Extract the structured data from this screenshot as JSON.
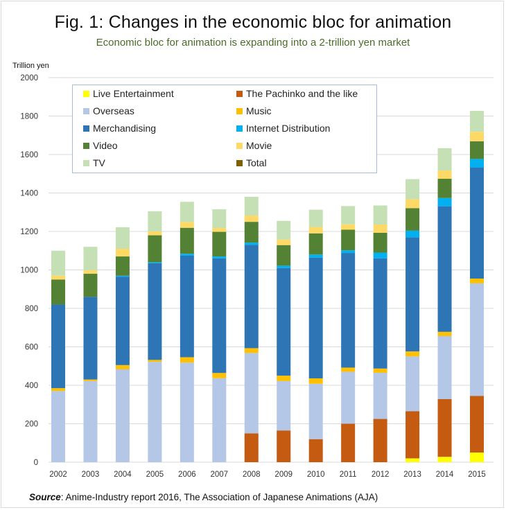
{
  "header": {
    "title": "Fig. 1: Changes in the economic bloc for animation",
    "subtitle": "Economic bloc for animation is expanding into a 2-trillion yen market",
    "unit_label": "Trillion yen"
  },
  "footer": {
    "source_label": "Source",
    "source_text": ": Anime-Industry report 2016, The Association of Japanese Animations (AJA)"
  },
  "legend": [
    {
      "name": "Live Entertainment",
      "color": "#ffff00"
    },
    {
      "name": "The Pachinko and the like",
      "color": "#c55a11"
    },
    {
      "name": "Overseas",
      "color": "#b4c7e7"
    },
    {
      "name": "Music",
      "color": "#ffc000"
    },
    {
      "name": "Merchandising",
      "color": "#2e75b6"
    },
    {
      "name": "Internet Distribution",
      "color": "#00b0f0"
    },
    {
      "name": "Video",
      "color": "#548235"
    },
    {
      "name": "Movie",
      "color": "#ffd966"
    },
    {
      "name": "TV",
      "color": "#c5e0b4"
    },
    {
      "name": "Total",
      "color": "#7f6000"
    }
  ],
  "chart_data": {
    "type": "bar",
    "stacked": true,
    "title": "Fig. 1: Changes in the economic bloc for animation",
    "subtitle": "Economic bloc for animation is expanding into a 2-trillion yen market",
    "xlabel": "",
    "ylabel": "Trillion yen",
    "ylim": [
      0,
      2000
    ],
    "yticks": [
      0,
      200,
      400,
      600,
      800,
      1000,
      1200,
      1400,
      1600,
      1800,
      2000
    ],
    "grid": true,
    "legend_position": "top-left (inside plot)",
    "categories": [
      "2002",
      "2003",
      "2004",
      "2005",
      "2006",
      "2007",
      "2008",
      "2009",
      "2010",
      "2011",
      "2012",
      "2013",
      "2014",
      "2015"
    ],
    "series": [
      {
        "name": "Live Entertainment",
        "color": "#ffff00",
        "values": [
          0,
          0,
          0,
          0,
          0,
          0,
          0,
          0,
          0,
          0,
          0,
          20,
          28,
          50
        ]
      },
      {
        "name": "The Pachinko and the like",
        "color": "#c55a11",
        "values": [
          0,
          0,
          0,
          0,
          0,
          0,
          150,
          165,
          120,
          200,
          225,
          245,
          300,
          295
        ]
      },
      {
        "name": "Overseas",
        "color": "#b4c7e7",
        "values": [
          370,
          422,
          483,
          522,
          518,
          437,
          418,
          257,
          288,
          270,
          240,
          285,
          328,
          585
        ]
      },
      {
        "name": "Music",
        "color": "#ffc000",
        "values": [
          15,
          8,
          22,
          10,
          28,
          27,
          25,
          28,
          28,
          22,
          22,
          26,
          22,
          25
        ]
      },
      {
        "name": "Merchandising",
        "color": "#2e75b6",
        "values": [
          435,
          430,
          460,
          503,
          528,
          596,
          537,
          560,
          628,
          596,
          573,
          593,
          653,
          578
        ]
      },
      {
        "name": "Internet Distribution",
        "color": "#00b0f0",
        "values": [
          0,
          0,
          5,
          5,
          10,
          10,
          12,
          12,
          16,
          14,
          30,
          35,
          43,
          44
        ]
      },
      {
        "name": "Video",
        "color": "#548235",
        "values": [
          130,
          120,
          100,
          140,
          135,
          128,
          108,
          107,
          110,
          107,
          103,
          117,
          100,
          92
        ]
      },
      {
        "name": "Movie",
        "color": "#ffd966",
        "values": [
          20,
          18,
          40,
          20,
          30,
          20,
          33,
          29,
          33,
          28,
          43,
          47,
          43,
          49
        ]
      },
      {
        "name": "TV",
        "color": "#c5e0b4",
        "values": [
          130,
          122,
          112,
          105,
          105,
          97,
          97,
          97,
          90,
          95,
          99,
          104,
          116,
          109
        ]
      }
    ],
    "totals": [
      1100,
      1120,
      1222,
      1305,
      1354,
      1315,
      1380,
      1255,
      1313,
      1332,
      1335,
      1472,
      1633,
      1827
    ]
  }
}
